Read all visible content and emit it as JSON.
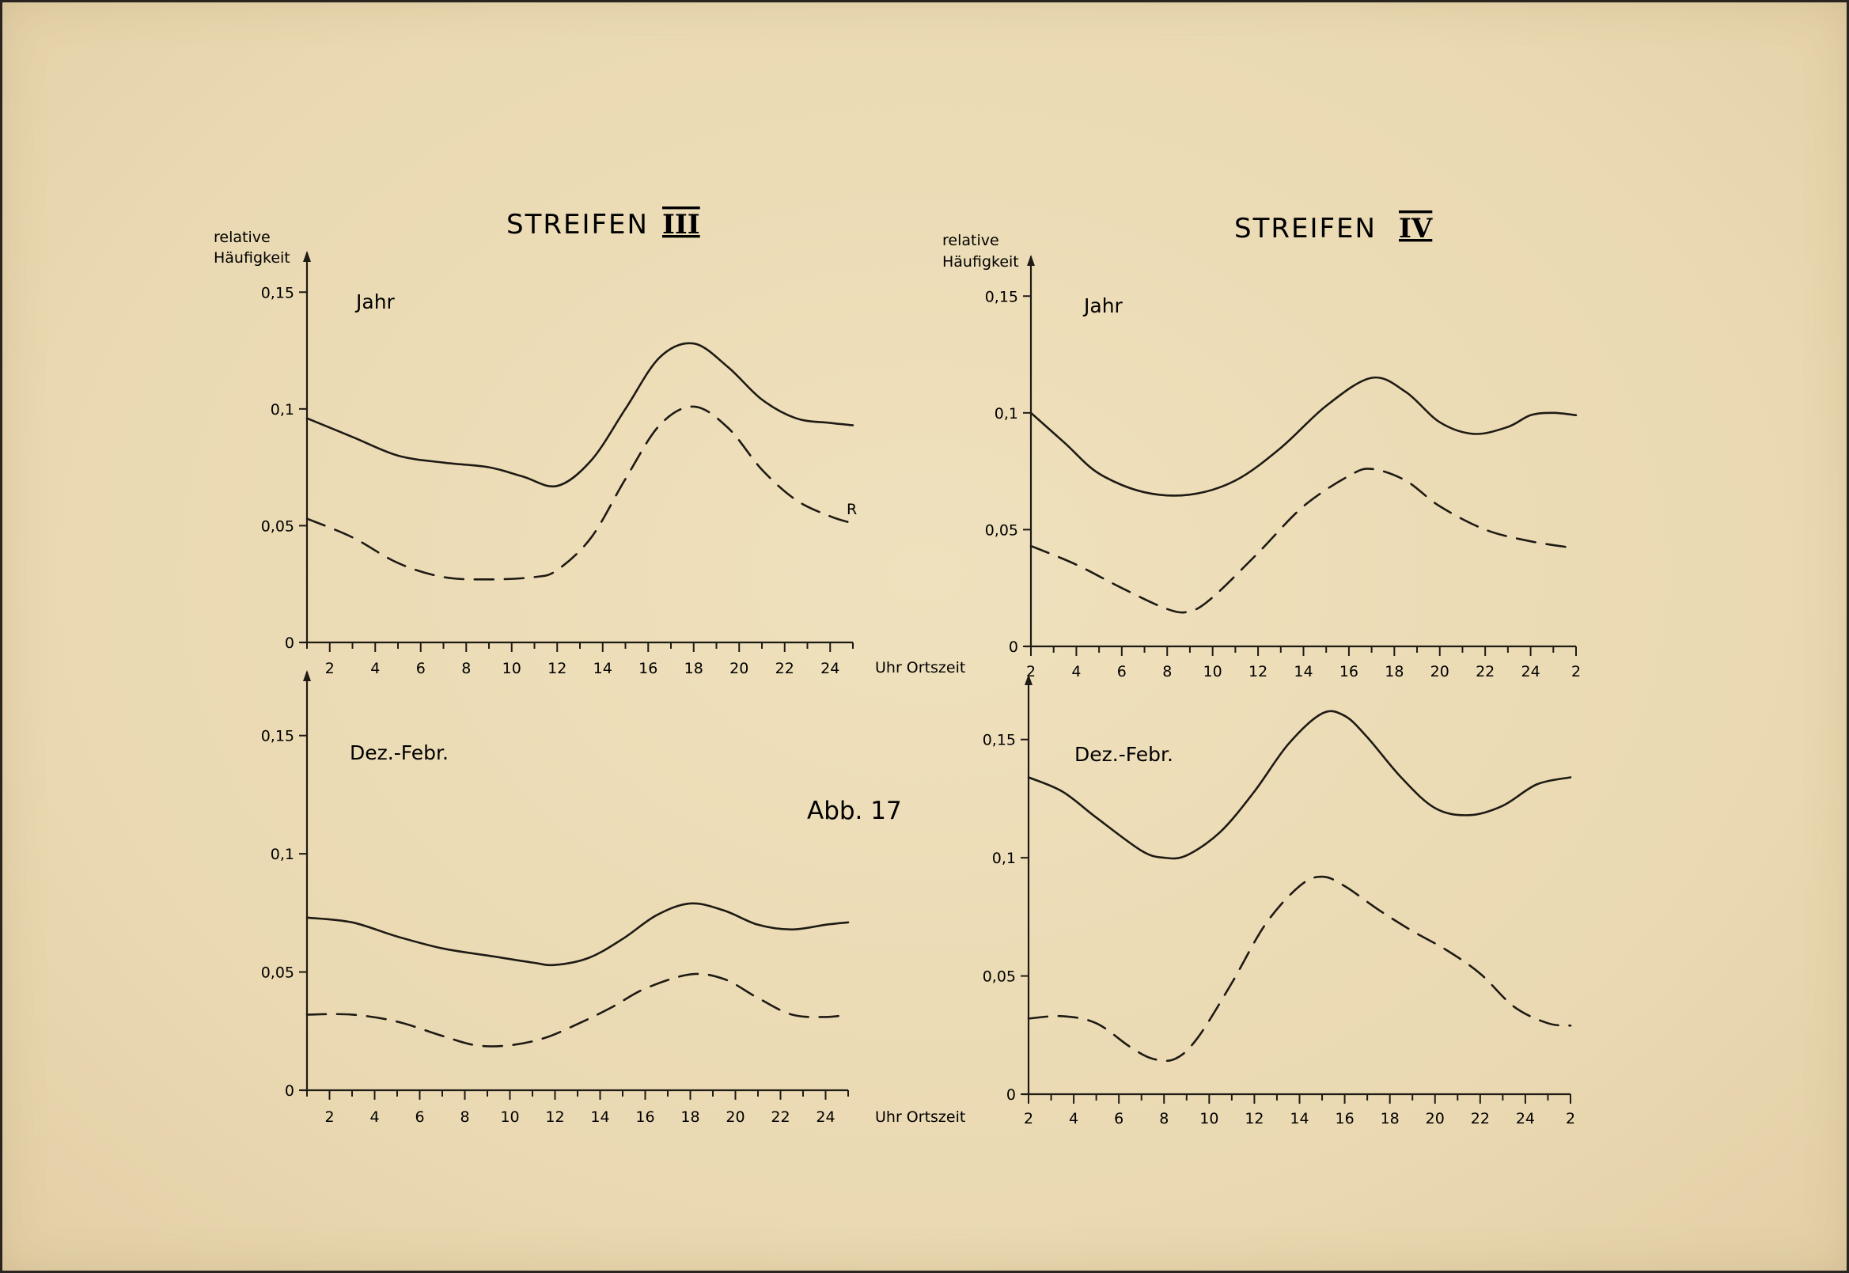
{
  "figure_label": "Abb. 17",
  "time_axis_label": "Uhr Ortszeit",
  "colors": {
    "ink": "#1e1a14",
    "paper": "#ecdcb6"
  },
  "chart_data": [
    {
      "id": "s3-jahr",
      "type": "line",
      "group": "left",
      "title": "STREIFEN",
      "title_numeral": "III",
      "ylabel_line1": "relative",
      "ylabel_line2": "Häufigkeit",
      "panel_label": "Jahr",
      "xlim": [
        1,
        25
      ],
      "ylim": [
        0,
        0.165
      ],
      "xticks": [
        "2",
        "4",
        "6",
        "8",
        "10",
        "12",
        "14",
        "16",
        "18",
        "20",
        "22",
        "24"
      ],
      "yticks": [
        "0",
        "0,05",
        "0,1",
        "0,15"
      ],
      "annotation": "R",
      "series": [
        {
          "name": "solid",
          "style": "solid",
          "x": [
            1,
            3,
            5,
            7,
            9,
            10.5,
            12,
            13.5,
            15,
            16.5,
            18,
            19.5,
            21,
            22.5,
            24,
            25
          ],
          "y": [
            0.096,
            0.088,
            0.08,
            0.077,
            0.075,
            0.071,
            0.067,
            0.078,
            0.1,
            0.122,
            0.128,
            0.118,
            0.104,
            0.096,
            0.094,
            0.093
          ]
        },
        {
          "name": "dashed",
          "style": "dashed",
          "x": [
            1,
            3,
            5,
            7,
            9,
            11,
            12,
            13.5,
            15,
            16.5,
            18,
            19.5,
            21,
            22.5,
            24,
            25
          ],
          "y": [
            0.053,
            0.045,
            0.034,
            0.028,
            0.027,
            0.028,
            0.031,
            0.045,
            0.07,
            0.093,
            0.101,
            0.092,
            0.074,
            0.061,
            0.054,
            0.051
          ]
        }
      ]
    },
    {
      "id": "s4-jahr",
      "type": "line",
      "group": "right",
      "title": "STREIFEN",
      "title_numeral": "IV",
      "ylabel_line1": "relative",
      "ylabel_line2": "Häufigkeit",
      "panel_label": "Jahr",
      "xlim": [
        2,
        26
      ],
      "ylim": [
        0,
        0.165
      ],
      "xticks": [
        "2",
        "4",
        "6",
        "8",
        "10",
        "12",
        "14",
        "16",
        "18",
        "20",
        "22",
        "24",
        "2"
      ],
      "yticks": [
        "0",
        "0,05",
        "0,1",
        "0,15"
      ],
      "series": [
        {
          "name": "solid",
          "style": "solid",
          "x": [
            2,
            3.5,
            5,
            7,
            9,
            11,
            13,
            15,
            17,
            18.5,
            20,
            21.5,
            23,
            24,
            25,
            26
          ],
          "y": [
            0.1,
            0.087,
            0.074,
            0.066,
            0.065,
            0.071,
            0.085,
            0.103,
            0.115,
            0.109,
            0.096,
            0.091,
            0.094,
            0.099,
            0.1,
            0.099
          ]
        },
        {
          "name": "dashed",
          "style": "dashed",
          "x": [
            2,
            4,
            6,
            8,
            9,
            10,
            12,
            14,
            16,
            17,
            18.5,
            20,
            22,
            24,
            26
          ],
          "y": [
            0.043,
            0.035,
            0.025,
            0.016,
            0.015,
            0.021,
            0.04,
            0.06,
            0.073,
            0.076,
            0.071,
            0.06,
            0.05,
            0.045,
            0.042
          ]
        }
      ]
    },
    {
      "id": "s3-winter",
      "type": "line",
      "group": "left",
      "panel_label": "Dez.-Febr.",
      "xlim": [
        1,
        25
      ],
      "ylim": [
        0,
        0.175
      ],
      "xticks": [
        "2",
        "4",
        "6",
        "8",
        "10",
        "12",
        "14",
        "16",
        "18",
        "20",
        "22",
        "24"
      ],
      "yticks": [
        "0",
        "0,05",
        "0,1",
        "0,15"
      ],
      "series": [
        {
          "name": "solid",
          "style": "solid",
          "x": [
            1,
            3,
            5,
            7,
            9,
            11,
            12,
            13.5,
            15,
            16.5,
            18,
            19.5,
            21,
            22.5,
            24,
            25
          ],
          "y": [
            0.073,
            0.071,
            0.065,
            0.06,
            0.057,
            0.054,
            0.053,
            0.056,
            0.064,
            0.074,
            0.079,
            0.076,
            0.07,
            0.068,
            0.07,
            0.071
          ]
        },
        {
          "name": "dashed",
          "style": "dashed",
          "x": [
            1,
            3,
            5,
            7,
            8.5,
            10,
            11.5,
            13,
            14.5,
            16,
            18,
            19.5,
            21,
            22.5,
            24,
            25
          ],
          "y": [
            0.032,
            0.032,
            0.029,
            0.023,
            0.019,
            0.019,
            0.022,
            0.028,
            0.035,
            0.043,
            0.049,
            0.047,
            0.039,
            0.032,
            0.031,
            0.032
          ]
        }
      ]
    },
    {
      "id": "s4-winter",
      "type": "line",
      "group": "right",
      "panel_label": "Dez.-Febr.",
      "xlim": [
        2,
        26
      ],
      "ylim": [
        0,
        0.175
      ],
      "xticks": [
        "2",
        "4",
        "6",
        "8",
        "10",
        "12",
        "14",
        "16",
        "18",
        "20",
        "22",
        "24",
        "2"
      ],
      "yticks": [
        "0",
        "0,05",
        "0,1",
        "0,15"
      ],
      "series": [
        {
          "name": "solid",
          "style": "solid",
          "x": [
            2,
            3.5,
            5,
            7,
            8,
            9,
            10.5,
            12,
            13.5,
            15,
            16,
            17,
            18.5,
            20,
            21.5,
            23,
            24.5,
            26
          ],
          "y": [
            0.134,
            0.128,
            0.117,
            0.103,
            0.1,
            0.101,
            0.111,
            0.128,
            0.148,
            0.161,
            0.16,
            0.151,
            0.134,
            0.121,
            0.118,
            0.122,
            0.131,
            0.134
          ]
        },
        {
          "name": "dashed",
          "style": "dashed",
          "x": [
            2,
            3.5,
            5,
            6.5,
            7.5,
            8.5,
            9.5,
            11,
            12.5,
            14,
            15,
            16,
            17.5,
            19,
            20.5,
            22,
            23.5,
            25,
            26
          ],
          "y": [
            0.032,
            0.033,
            0.03,
            0.02,
            0.015,
            0.015,
            0.024,
            0.047,
            0.072,
            0.088,
            0.092,
            0.088,
            0.078,
            0.069,
            0.061,
            0.051,
            0.037,
            0.03,
            0.029
          ]
        }
      ]
    }
  ]
}
